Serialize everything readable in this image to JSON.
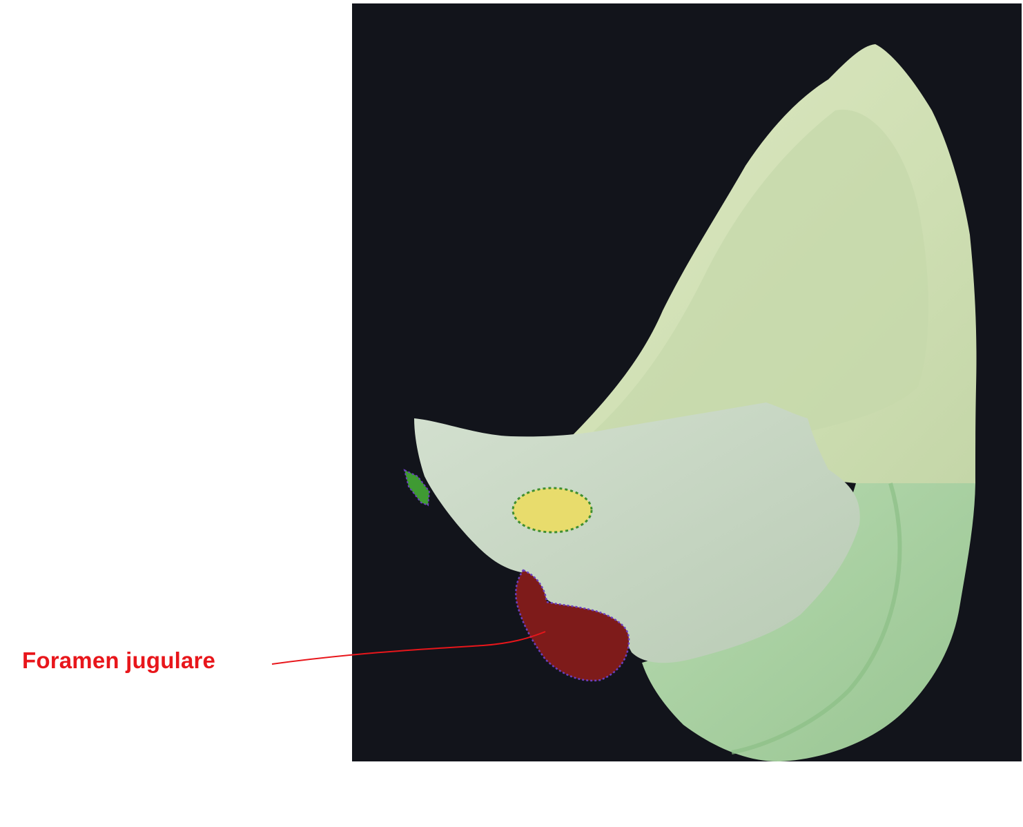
{
  "annotation": {
    "label": "Foramen jugulare",
    "color": "#e8161b"
  },
  "colors": {
    "background_panel": "#12141b",
    "occipital_squama": "#d6e3bb",
    "occipital_basal": "#a9d3a4",
    "petrous_bone": "#c7d6c2",
    "foramen_jugulare": "#7e1b1a",
    "highlight_yellow": "#e8dc6c",
    "highlight_green": "#3f9a33"
  }
}
